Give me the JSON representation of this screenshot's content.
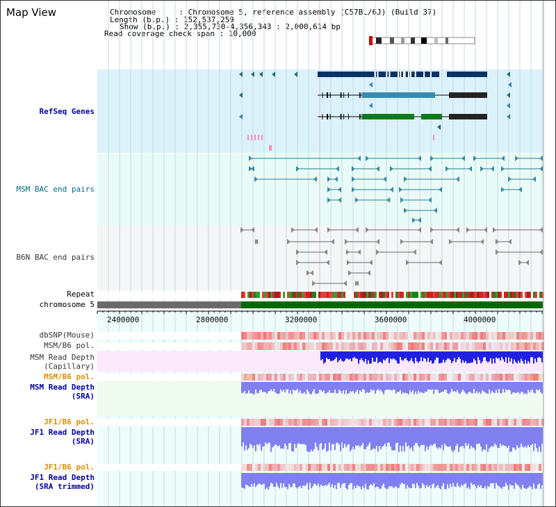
{
  "header": {
    "title": "Map View",
    "chromosome_label": "Chromosome     : Chromosome 5, reference assembly (C57BL/6J) (Build 37)",
    "length_label": "Length (b.p.) : 152,537,259",
    "show_label": "Show (b.p.) : 2,355,730-4,356,343 : 2,000,614 bp",
    "coverage_label": "Read coverage check span : 10,000"
  },
  "tracks": {
    "refseq": "RefSeq Genes",
    "msm_bac": "MSM BAC end pairs",
    "b6n_bac": "B6N BAC end pairs",
    "repeat": "Repeat",
    "chromosome": "chromosome 5",
    "dbsnp": "dbSNP(Mouse)",
    "msm_b6_pol_1": "MSM/B6 pol.",
    "msm_read_depth_cap": "MSM Read Depth\n(Capillary)",
    "msm_b6_pol_2": "MSM/B6 pol.",
    "msm_read_depth_sra": "MSM Read Depth\n(SRA)",
    "jf1_b6_pol_1": "JF1/B6 pol.",
    "jf1_read_depth_sra": "JF1 Read Depth\n(SRA)",
    "jf1_b6_pol_2": "JF1/B6 pol.",
    "jf1_read_depth_trim": "JF1 Read Depth\n(SRA trimmed)"
  },
  "axis": {
    "ticks": [
      "2400000",
      "2800000",
      "3200000",
      "3600000",
      "4000000"
    ]
  },
  "colors": {
    "refseq_bg": "#dcf2fb",
    "msm_bac_bg": "#e8fbf9",
    "b6n_bac_bg": "#f5f7f8",
    "gene_dark": "#0a3264",
    "gene_mid": "#3a8ab0",
    "gene_green": "#0a7a1a",
    "chrom_green": "#006a00",
    "chrom_gray": "#6a6a6a",
    "depth_blue": "#2020e0",
    "depth_light": "#8080f0"
  }
}
